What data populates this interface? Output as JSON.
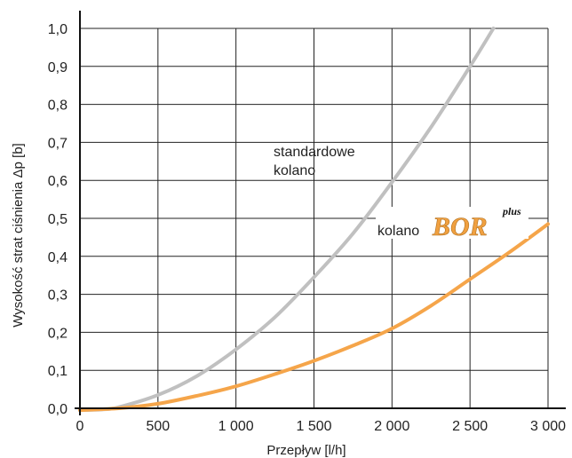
{
  "chart_data": {
    "type": "line",
    "xlabel": "Przepływ [l/h]",
    "ylabel": "Wysokość strat ciśnienia Δp [b]",
    "xlim": [
      0,
      3000
    ],
    "ylim": [
      0,
      1.0
    ],
    "x_ticks": [
      0,
      500,
      1000,
      1500,
      2000,
      2500,
      3000
    ],
    "x_tick_labels": [
      "0",
      "500",
      "1 000",
      "1 500",
      "2 000",
      "2 500",
      "3 000"
    ],
    "y_ticks": [
      0,
      0.1,
      0.2,
      0.3,
      0.4,
      0.5,
      0.6,
      0.7,
      0.8,
      0.9,
      1.0
    ],
    "y_tick_labels": [
      "0,0",
      "0,1",
      "0,2",
      "0,3",
      "0,4",
      "0,5",
      "0,6",
      "0,7",
      "0,8",
      "0,9",
      "1,0"
    ],
    "grid": true,
    "series": [
      {
        "name": "standardowe kolano",
        "color": "#c0c0c0",
        "x": [
          0,
          150,
          250,
          500,
          750,
          1000,
          1250,
          1500,
          1750,
          2000,
          2250,
          2500,
          2650
        ],
        "y": [
          -0.005,
          -0.003,
          0.003,
          0.035,
          0.085,
          0.155,
          0.24,
          0.345,
          0.46,
          0.595,
          0.74,
          0.9,
          1.0
        ]
      },
      {
        "name": "kolano BOR plus",
        "color": "#f5a54a",
        "x": [
          0,
          250,
          500,
          750,
          1000,
          1250,
          1500,
          1750,
          2000,
          2250,
          2500,
          2750,
          3000
        ],
        "y": [
          -0.005,
          0.0,
          0.012,
          0.033,
          0.058,
          0.09,
          0.125,
          0.165,
          0.21,
          0.27,
          0.34,
          0.41,
          0.485
        ]
      }
    ],
    "annotations": {
      "standard_line1": "standardowe",
      "standard_line2": "kolano",
      "bor_prefix": "kolano",
      "bor_brand": "BOR",
      "bor_sup": "plus"
    }
  }
}
